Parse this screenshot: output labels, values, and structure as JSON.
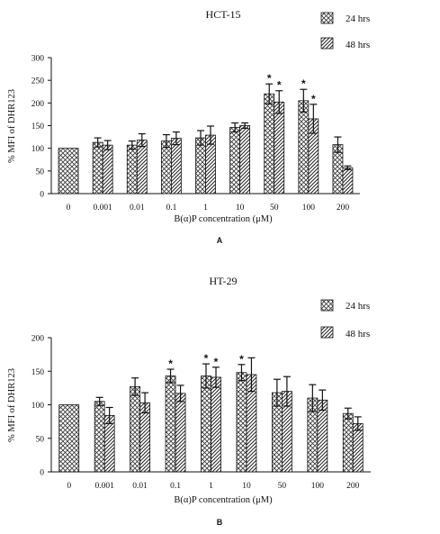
{
  "chart_data": [
    {
      "type": "bar",
      "title": "HCT-15",
      "panel_label": "A",
      "xlabel": "B(α)P concentration (μM)",
      "ylabel": "% MFI of DHR123",
      "categories": [
        "0",
        "0.001",
        "0.01",
        "0.1",
        "1",
        "10",
        "50",
        "100",
        "200"
      ],
      "ylim": [
        0,
        300
      ],
      "yticks": [
        0,
        50,
        100,
        150,
        200,
        250,
        300
      ],
      "legend_position": "top-right",
      "series": [
        {
          "name": "24 hrs",
          "pattern": "crosshatch",
          "values": [
            100,
            113,
            107,
            116,
            123,
            146,
            220,
            205,
            108
          ],
          "errors": [
            0,
            10,
            9,
            14,
            16,
            10,
            22,
            25,
            17
          ],
          "significant": [
            false,
            false,
            false,
            false,
            false,
            false,
            true,
            true,
            false
          ]
        },
        {
          "name": "48 hrs",
          "pattern": "diagonal",
          "values": [
            null,
            107,
            118,
            122,
            129,
            150,
            202,
            165,
            57
          ],
          "errors": [
            null,
            10,
            14,
            14,
            20,
            6,
            25,
            32,
            4
          ],
          "significant": [
            false,
            false,
            false,
            false,
            false,
            false,
            true,
            true,
            false
          ]
        }
      ],
      "annotations": [
        "*"
      ]
    },
    {
      "type": "bar",
      "title": "HT-29",
      "panel_label": "B",
      "xlabel": "B(α)P concentration (μM)",
      "ylabel": "% MFI of DHR123",
      "categories": [
        "0",
        "0.001",
        "0.01",
        "0.1",
        "1",
        "10",
        "50",
        "100",
        "200"
      ],
      "ylim": [
        0,
        200
      ],
      "yticks": [
        0,
        50,
        100,
        150,
        200
      ],
      "legend_position": "top-right",
      "series": [
        {
          "name": "24 hrs",
          "pattern": "crosshatch",
          "values": [
            100,
            105,
            127,
            143,
            143,
            148,
            118,
            110,
            87
          ],
          "errors": [
            0,
            6,
            13,
            10,
            18,
            12,
            20,
            20,
            8
          ],
          "significant": [
            false,
            false,
            false,
            true,
            true,
            true,
            false,
            false,
            false
          ]
        },
        {
          "name": "48 hrs",
          "pattern": "diagonal",
          "values": [
            null,
            84,
            103,
            117,
            141,
            145,
            120,
            107,
            72
          ],
          "errors": [
            null,
            12,
            15,
            12,
            15,
            25,
            22,
            15,
            10
          ],
          "significant": [
            false,
            false,
            false,
            false,
            true,
            false,
            false,
            false,
            false
          ]
        }
      ],
      "annotations": [
        "*"
      ]
    }
  ]
}
